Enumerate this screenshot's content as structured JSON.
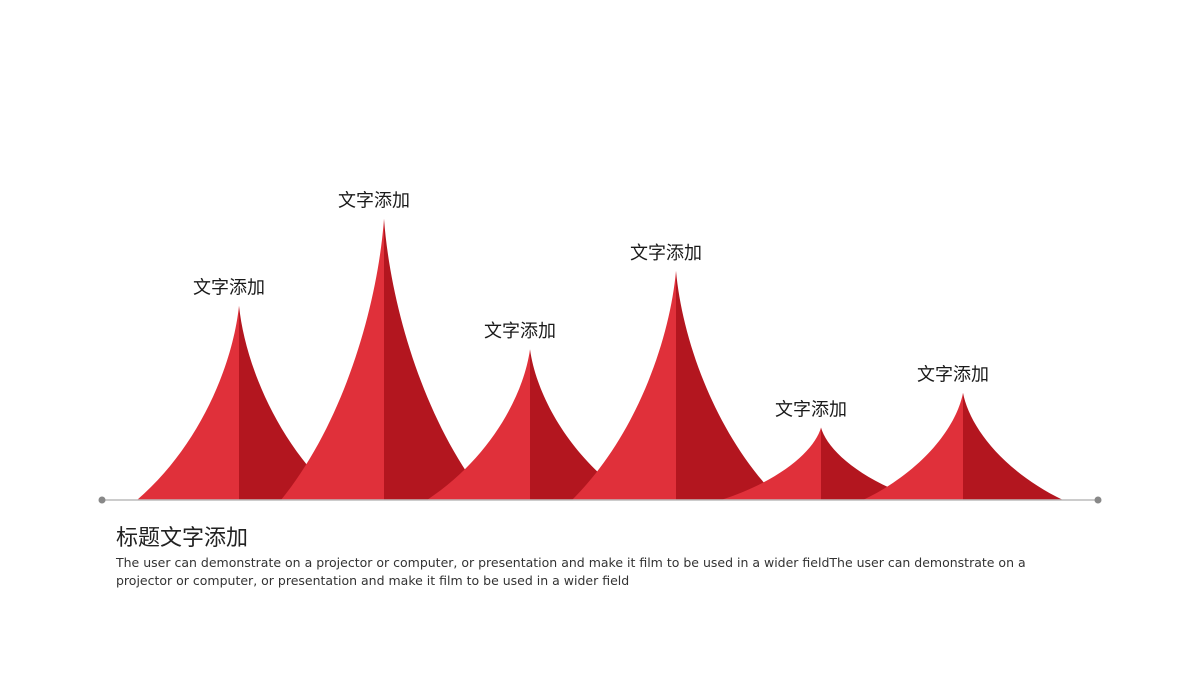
{
  "chart_data": {
    "type": "area",
    "categories": [
      "文字添加",
      "文字添加",
      "文字添加",
      "文字添加",
      "文字添加",
      "文字添加"
    ],
    "values": [
      67,
      97,
      52,
      79,
      25,
      37
    ],
    "ylim": [
      0,
      100
    ],
    "colors": {
      "light": "#e0303a",
      "dark": "#b3161f",
      "axis": "#bbbbbb",
      "axis_dot": "#888888"
    }
  },
  "content": {
    "title": "标题文字添加",
    "body": "The user can demonstrate on a projector or computer, or presentation and make it film to be used in a wider fieldThe user can demonstrate on a projector or computer, or presentation and make it film to be used in a wider field"
  }
}
